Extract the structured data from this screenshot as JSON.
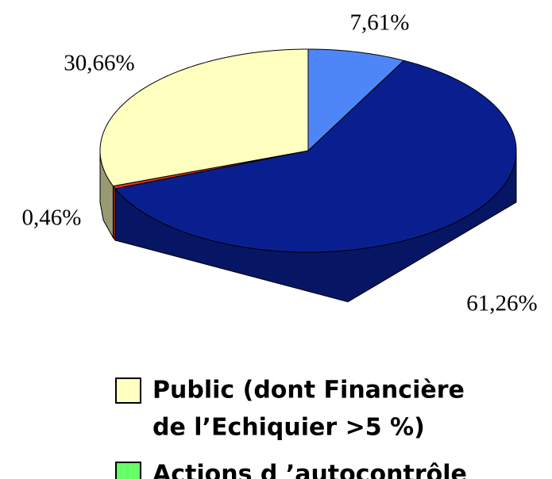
{
  "chart_data": {
    "type": "pie3d",
    "values": [
      7.61,
      61.26,
      0.46,
      30.66
    ],
    "value_labels": [
      "7,61%",
      "61,26%",
      "0,46%",
      "30,66%"
    ],
    "colors": [
      "#4f86f7",
      "#0a1f8f",
      "#e0301e",
      "#ffffc0"
    ],
    "legend": [
      {
        "name": [
          "Public (dont Financière",
          "de l’Echiquier >5 %)"
        ],
        "color": "#ffffc0"
      },
      {
        "name": [
          "Actions d ’autocontrôle"
        ],
        "color": "#66ff66"
      }
    ]
  }
}
